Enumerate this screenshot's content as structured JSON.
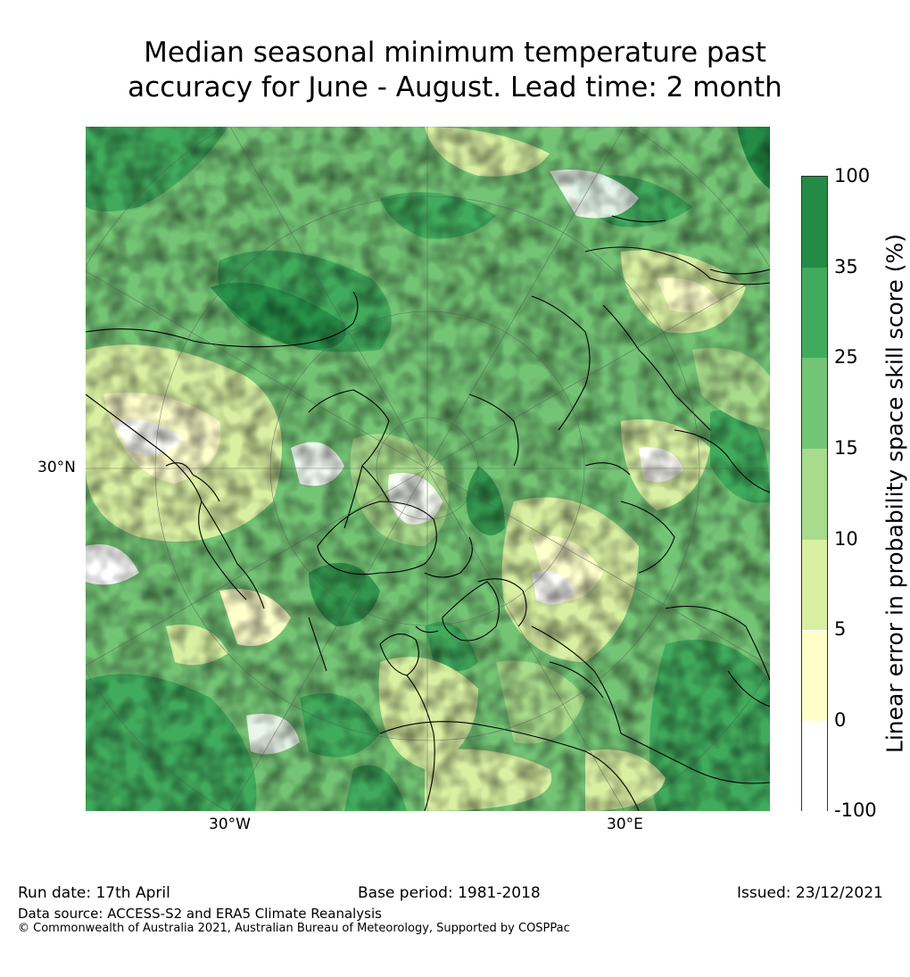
{
  "title": {
    "line1": "Median seasonal minimum temperature past",
    "line2": "accuracy for June - August. Lead time: 2 month"
  },
  "map": {
    "projection": "north-polar-stereographic",
    "lat_label": "30°N",
    "lon_labels": [
      "30°W",
      "30°E"
    ],
    "coastline_color": "#000000",
    "graticule_color": "#555555"
  },
  "colorbar": {
    "label": "Linear error in probability space skill score (%)",
    "ticks": [
      "100",
      "35",
      "25",
      "15",
      "10",
      "5",
      "0",
      "-100"
    ],
    "bins": [
      {
        "from": 35,
        "to": 100,
        "color": "#238b45"
      },
      {
        "from": 25,
        "to": 35,
        "color": "#41ab5d"
      },
      {
        "from": 15,
        "to": 25,
        "color": "#74c476"
      },
      {
        "from": 10,
        "to": 15,
        "color": "#a9db8c"
      },
      {
        "from": 5,
        "to": 10,
        "color": "#d9f0a3"
      },
      {
        "from": 0,
        "to": 5,
        "color": "#ffffcc"
      },
      {
        "from": -100,
        "to": 0,
        "color": "#ffffff"
      }
    ]
  },
  "footer": {
    "run_date": "Run date: 17th April",
    "base_period": "Base period: 1981-2018",
    "issued": "Issued: 23/12/2021",
    "data_source": "Data source: ACCESS-S2 and ERA5 Climate Reanalysis",
    "copyright": "© Commonwealth of Australia 2021, Australian Bureau of Meteorology, Supported by COSPPac"
  }
}
